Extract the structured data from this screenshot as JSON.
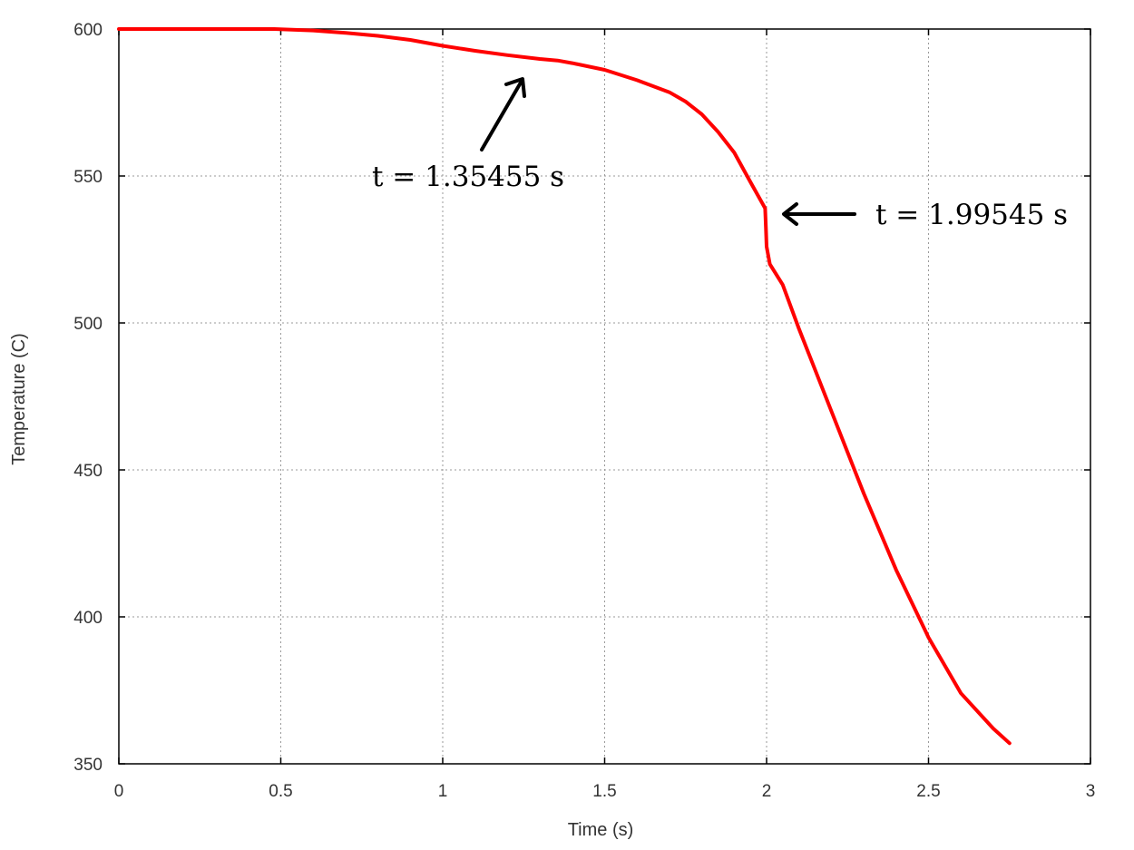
{
  "chart_data": {
    "type": "line",
    "title": "",
    "xlabel": "Time (s)",
    "ylabel": "Temperature (C)",
    "xlim": [
      0,
      3
    ],
    "ylim": [
      350,
      600
    ],
    "xticks": [
      0,
      0.5,
      1,
      1.5,
      2,
      2.5,
      3
    ],
    "xtick_labels": [
      "0",
      "0.5",
      "1",
      "1.5",
      "2",
      "2.5",
      "3"
    ],
    "yticks": [
      350,
      400,
      450,
      500,
      550,
      600
    ],
    "ytick_labels": [
      "350",
      "400",
      "450",
      "500",
      "550",
      "600"
    ],
    "grid": true,
    "legend": "none",
    "series": [
      {
        "color": "#ff0000",
        "x": [
          0,
          0.48,
          0.6,
          0.7,
          0.8,
          0.9,
          1.0,
          1.1,
          1.2,
          1.3,
          1.35455,
          1.4,
          1.5,
          1.6,
          1.7,
          1.75,
          1.8,
          1.85,
          1.9,
          1.95,
          1.99545,
          1.998,
          2.0,
          2.01,
          2.05,
          2.1,
          2.2,
          2.3,
          2.4,
          2.5,
          2.6,
          2.7,
          2.75
        ],
        "y": [
          600,
          600,
          599.5,
          598.7,
          597.7,
          596.3,
          594.3,
          592.6,
          591.1,
          589.8,
          589.3,
          588.4,
          586.1,
          582.6,
          578.5,
          575.3,
          571.0,
          565.0,
          558.0,
          548.0,
          539.0,
          532.0,
          526.0,
          520.0,
          513.0,
          498.0,
          470.0,
          442.0,
          416.0,
          393.0,
          374.0,
          362.0,
          357.0
        ]
      }
    ],
    "annotations": [
      {
        "label": "t = 1.35455 s",
        "x": 1.35455,
        "y": 589.3
      },
      {
        "label": "t = 1.99545 s",
        "x": 1.99545,
        "y": 539.0
      }
    ]
  }
}
